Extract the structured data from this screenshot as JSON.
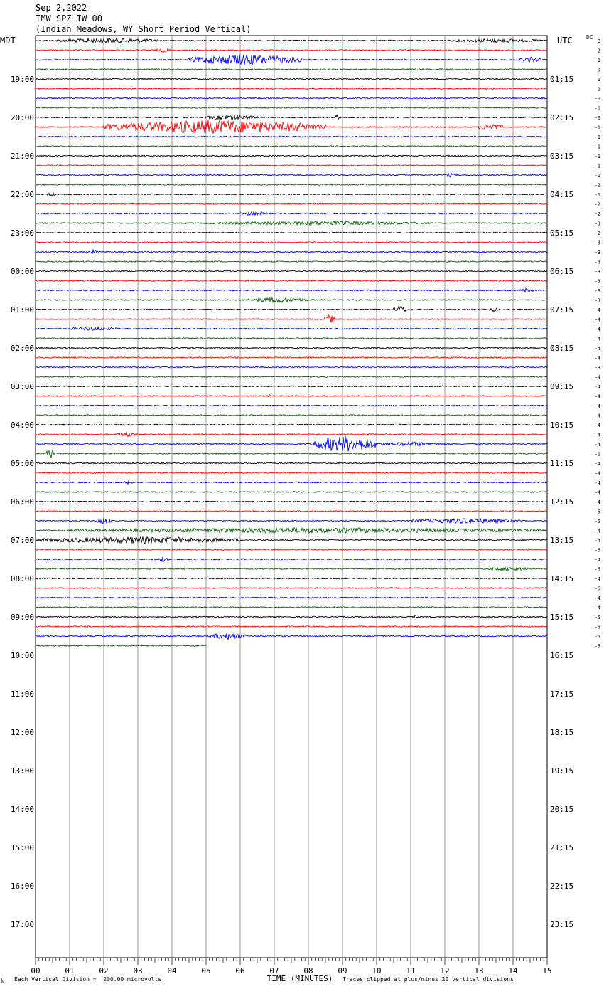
{
  "header": {
    "date": "Sep 2,2022",
    "station": "IMW SPZ IW 00",
    "location": "(Indian Meadows, WY Short Period Vertical)"
  },
  "left_zone": "MDT",
  "right_zone": "UTC",
  "dc_label": "DC",
  "footer": {
    "scale_note": "Each Vertical Division =  200.00 microvolts",
    "clip_note": "Traces clipped at plus/minus 20 vertical divisions",
    "mark": "ﾑ"
  },
  "chart_data": {
    "type": "helicorder",
    "title": "IMW SPZ IW 00",
    "xlabel": "TIME (MINUTES)",
    "x_ticks": [
      "00",
      "01",
      "02",
      "03",
      "04",
      "05",
      "06",
      "07",
      "08",
      "09",
      "10",
      "11",
      "12",
      "13",
      "14",
      "15"
    ],
    "x_range_minutes": [
      0,
      15
    ],
    "left_hour_labels": [
      "19:00",
      "20:00",
      "21:00",
      "22:00",
      "23:00",
      "00:00",
      "01:00",
      "02:00",
      "03:00",
      "04:00",
      "05:00",
      "06:00",
      "07:00",
      "08:00",
      "09:00",
      "10:00",
      "11:00",
      "12:00",
      "13:00",
      "14:00",
      "15:00",
      "16:00",
      "17:00"
    ],
    "right_hour_labels": [
      "01:15",
      "02:15",
      "03:15",
      "04:15",
      "05:15",
      "06:15",
      "07:15",
      "08:15",
      "09:15",
      "10:15",
      "11:15",
      "12:15",
      "13:15",
      "14:15",
      "15:15",
      "16:15",
      "17:15",
      "18:15",
      "19:15",
      "20:15",
      "21:15",
      "22:15",
      "23:15"
    ],
    "first_label_row": 4,
    "rows_per_hour": 4,
    "trace_colors": [
      "#000000",
      "#ff0000",
      "#0000ff",
      "#006400"
    ],
    "dc_offsets": [
      "0",
      "2",
      "-1",
      "0",
      "1",
      "1",
      "-0",
      "-0",
      "-0",
      "-1",
      "-1",
      "-1",
      "-1",
      "-1",
      "-1",
      "-2",
      "-1",
      "-2",
      "-2",
      "-3",
      "-2",
      "-3",
      "-3",
      "-3",
      "-3",
      "-3",
      "-3",
      "-3",
      "-4",
      "-4",
      "-4",
      "-4",
      "-4",
      "-4",
      "-3",
      "-4",
      "-4",
      "-4",
      "-4",
      "-4",
      "-4",
      "-4",
      "-4",
      "-1",
      "-4",
      "-4",
      "-4",
      "-4",
      "-4",
      "-5",
      "-5",
      "-4",
      "-4",
      "-5",
      "-4",
      "-5",
      "-4",
      "-5",
      "-4",
      "-4",
      "-5",
      "-5",
      "-5",
      "-5"
    ],
    "num_traces": 64,
    "last_trace_end_minute": 5.0,
    "events": [
      {
        "trace": 0,
        "start": 0.6,
        "end": 3.6,
        "amp": 4
      },
      {
        "trace": 0,
        "start": 12.2,
        "end": 14.9,
        "amp": 3
      },
      {
        "trace": 1,
        "start": 3.5,
        "end": 4.0,
        "amp": 3
      },
      {
        "trace": 2,
        "start": 4.5,
        "end": 7.8,
        "amp": 8
      },
      {
        "trace": 2,
        "start": 14.2,
        "end": 14.8,
        "amp": 4
      },
      {
        "trace": 8,
        "start": 5.0,
        "end": 6.5,
        "amp": 4
      },
      {
        "trace": 8,
        "start": 8.8,
        "end": 8.9,
        "amp": 6
      },
      {
        "trace": 9,
        "start": 2.0,
        "end": 8.5,
        "amp": 10
      },
      {
        "trace": 9,
        "start": 13.0,
        "end": 13.7,
        "amp": 6
      },
      {
        "trace": 14,
        "start": 12.0,
        "end": 12.3,
        "amp": 3
      },
      {
        "trace": 16,
        "start": 0.3,
        "end": 0.6,
        "amp": 3
      },
      {
        "trace": 18,
        "start": 5.9,
        "end": 6.9,
        "amp": 3
      },
      {
        "trace": 19,
        "start": 5.0,
        "end": 11.6,
        "amp": 3
      },
      {
        "trace": 22,
        "start": 1.6,
        "end": 1.8,
        "amp": 3
      },
      {
        "trace": 26,
        "start": 14.2,
        "end": 14.6,
        "amp": 3
      },
      {
        "trace": 27,
        "start": 6.2,
        "end": 8.0,
        "amp": 4
      },
      {
        "trace": 28,
        "start": 10.5,
        "end": 10.9,
        "amp": 6
      },
      {
        "trace": 28,
        "start": 13.3,
        "end": 13.6,
        "amp": 3
      },
      {
        "trace": 29,
        "start": 8.4,
        "end": 8.8,
        "amp": 7
      },
      {
        "trace": 30,
        "start": 1.0,
        "end": 2.4,
        "amp": 3
      },
      {
        "trace": 37,
        "start": 6.8,
        "end": 6.9,
        "amp": 3
      },
      {
        "trace": 41,
        "start": 2.4,
        "end": 2.9,
        "amp": 4
      },
      {
        "trace": 42,
        "start": 8.1,
        "end": 10.0,
        "amp": 12
      },
      {
        "trace": 42,
        "start": 10.0,
        "end": 12.0,
        "amp": 3
      },
      {
        "trace": 43,
        "start": 0.3,
        "end": 0.6,
        "amp": 7
      },
      {
        "trace": 46,
        "start": 2.6,
        "end": 2.9,
        "amp": 3
      },
      {
        "trace": 50,
        "start": 1.8,
        "end": 2.2,
        "amp": 6
      },
      {
        "trace": 50,
        "start": 11.0,
        "end": 14.2,
        "amp": 4
      },
      {
        "trace": 51,
        "start": 1.0,
        "end": 14.9,
        "amp": 4
      },
      {
        "trace": 52,
        "start": 0.0,
        "end": 6.0,
        "amp": 5
      },
      {
        "trace": 54,
        "start": 3.6,
        "end": 3.9,
        "amp": 4
      },
      {
        "trace": 55,
        "start": 13.2,
        "end": 14.6,
        "amp": 3
      },
      {
        "trace": 60,
        "start": 11.0,
        "end": 11.2,
        "amp": 3
      },
      {
        "trace": 62,
        "start": 5.1,
        "end": 6.2,
        "amp": 5
      }
    ]
  }
}
